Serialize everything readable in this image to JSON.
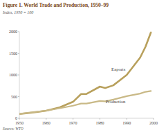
{
  "chart_data": {
    "type": "line",
    "title": "Figure 1. World Trade and Production, 1950–99",
    "subtitle": "Index, 1950 = 100",
    "source": "Source: WTO",
    "x": [
      1950,
      1955,
      1960,
      1965,
      1970,
      1973,
      1975,
      1980,
      1982,
      1985,
      1990,
      1995,
      1997,
      1999
    ],
    "series": [
      {
        "name": "Exports",
        "color": "#b8a05c",
        "values": [
          100,
          130,
          175,
          250,
          380,
          560,
          560,
          730,
          700,
          760,
          1000,
          1400,
          1650,
          1980
        ]
      },
      {
        "name": "Production",
        "color": "#c9b987",
        "values": [
          100,
          140,
          175,
          230,
          290,
          340,
          340,
          400,
          390,
          430,
          510,
          570,
          610,
          630
        ]
      }
    ],
    "xlim": [
      1950,
      2000
    ],
    "xticks": [
      1950,
      1960,
      1970,
      1980,
      1990,
      2000
    ],
    "ylim": [
      0,
      2000
    ],
    "yticks": [
      0,
      500,
      1000,
      1500,
      2000
    ],
    "grid": false
  }
}
